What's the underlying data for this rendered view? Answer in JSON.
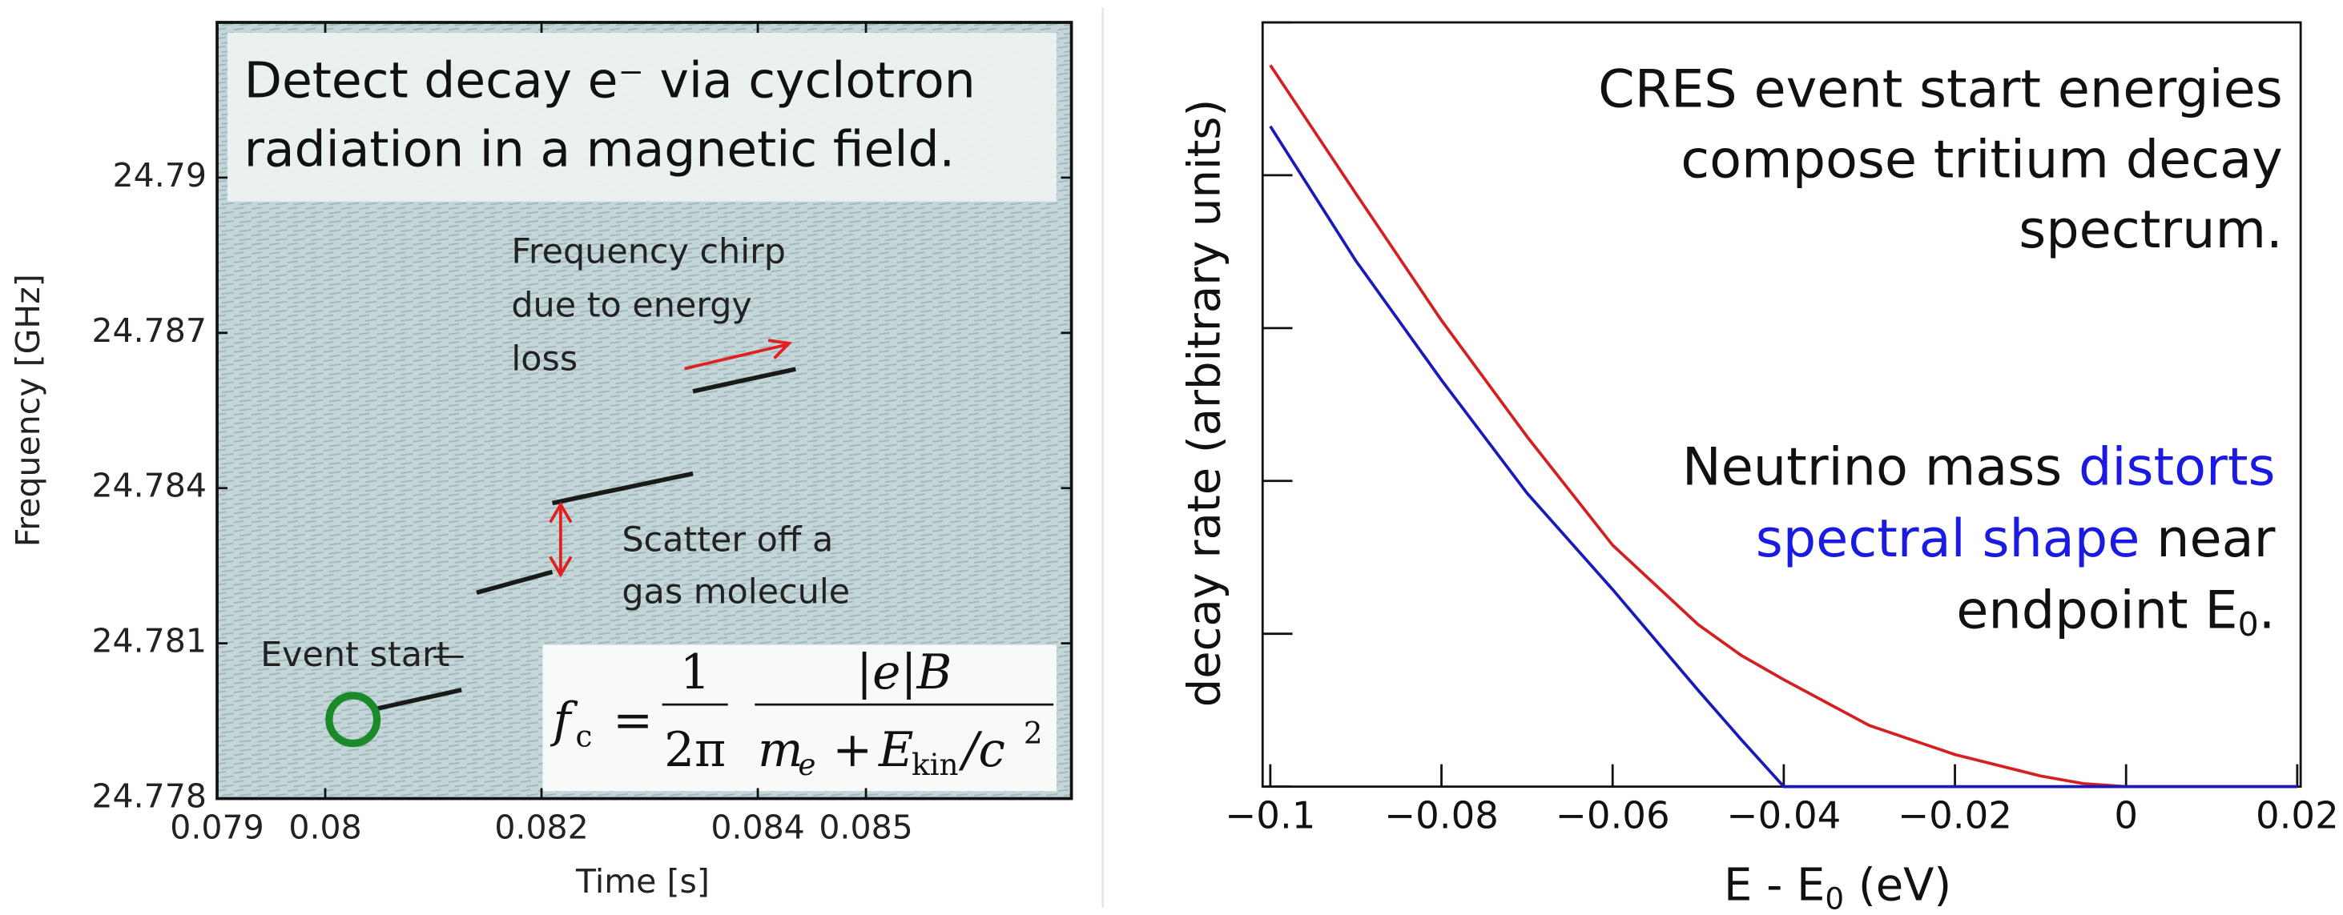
{
  "chart_data": [
    {
      "type": "line",
      "title_lines": [
        "Detect decay e⁻ via cyclotron",
        "radiation in a magnetic field."
      ],
      "xlabel": "Time [s]",
      "ylabel": "Frequency [GHz]",
      "x": [
        0.08046,
        0.08126,
        0.0813,
        0.0814,
        0.0821,
        0.08215,
        0.0821,
        0.0834,
        0.08345,
        0.0834,
        0.08435
      ],
      "values": [
        24.77973,
        24.7801,
        null,
        24.78198,
        24.78238,
        null,
        24.78371,
        24.78428,
        null,
        24.78587,
        24.7863
      ],
      "color": "#1a1a1a",
      "xlim": [
        0.079,
        0.0869
      ],
      "xticks": [
        0.079,
        0.08,
        0.082,
        0.084,
        0.085
      ],
      "ylim": [
        24.778,
        24.793
      ],
      "yticks": [
        24.778,
        24.781,
        24.784,
        24.787,
        24.79
      ],
      "annotations": {
        "chirp": [
          "Frequency chirp",
          "due to energy",
          "loss"
        ],
        "scatter": [
          "Scatter off a",
          "gas molecule"
        ],
        "start": "Event start"
      },
      "formula": {
        "f": "f",
        "c": "c",
        "eq": "=",
        "one": "1",
        "twopi": "2π",
        "num": "|e|B",
        "m": "m",
        "e": "e",
        "plus": "+",
        "E": "E",
        "kin": "kin",
        "slash": "/c",
        "two": "2"
      }
    },
    {
      "type": "line",
      "xlabel": [
        "E - E",
        "0",
        " (eV)"
      ],
      "ylabel": "decay rate (arbitrary units)",
      "x": [
        -0.1,
        -0.09,
        -0.08,
        -0.07,
        -0.06,
        -0.05,
        -0.045,
        -0.04,
        -0.03,
        -0.02,
        -0.01,
        -0.005,
        0,
        0.01,
        0.02
      ],
      "series": [
        {
          "color": "#d42020",
          "values": [
            4.72,
            3.88,
            3.05,
            2.29,
            1.58,
            1.06,
            0.86,
            0.7,
            0.4,
            0.21,
            0.07,
            0.02,
            0,
            0,
            0
          ]
        },
        {
          "color": "#1a1ab8",
          "values": [
            4.32,
            3.44,
            2.66,
            1.92,
            1.29,
            0.63,
            0.31,
            0,
            0,
            0,
            0,
            0,
            0,
            0,
            0
          ]
        }
      ],
      "xlim": [
        -0.1009,
        0.0204
      ],
      "xticks": [
        {
          "value": -0.1,
          "label": "−0.1"
        },
        {
          "value": -0.08,
          "label": "−0.08"
        },
        {
          "value": -0.06,
          "label": "−0.06"
        },
        {
          "value": -0.04,
          "label": "−0.04"
        },
        {
          "value": -0.02,
          "label": "−0.02"
        },
        0,
        0.02
      ],
      "ylim": [
        0,
        5
      ],
      "yticks": [
        0,
        1,
        2,
        3,
        4,
        5
      ],
      "annotation1": [
        "CRES event start energies",
        "compose tritium decay",
        "spectrum."
      ],
      "annotation2": [
        [
          {
            "text": "Neutrino mass "
          },
          {
            "text": "distorts",
            "color": "#1a1ae0"
          }
        ],
        [
          {
            "text": "spectral shape",
            "color": "#1a1ae0"
          },
          {
            "text": " near"
          }
        ],
        [
          {
            "text": "endpoint E"
          },
          {
            "text": "0",
            "sub": true
          },
          {
            "text": "."
          }
        ]
      ]
    }
  ]
}
